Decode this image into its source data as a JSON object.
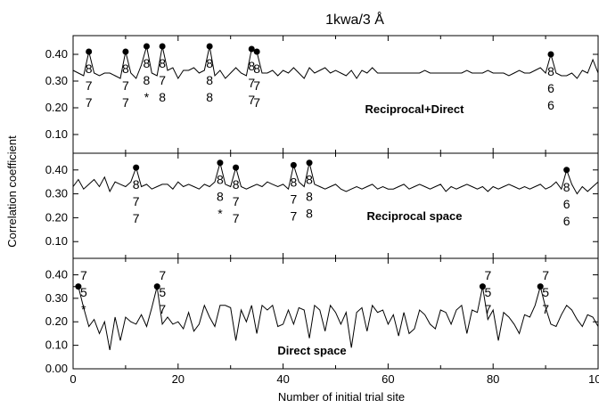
{
  "chart_data": {
    "title": "1kwa/3 Å",
    "xlabel": "Number of initial trial site",
    "ylabel": "Correlation coefficient",
    "xlim": [
      0,
      100
    ],
    "xticks": [
      "0",
      "20",
      "40",
      "60",
      "80",
      "100"
    ],
    "panels": [
      {
        "type": "line",
        "name": "Reciprocal+Direct",
        "ylim": [
          0.03,
          0.47
        ],
        "yticks": [
          "0.40",
          "0.30",
          "0.20",
          "0.10"
        ],
        "ytick_values": [
          0.4,
          0.3,
          0.2,
          0.1
        ],
        "x": [
          0,
          1,
          2,
          3,
          4,
          5,
          6,
          7,
          8,
          9,
          10,
          11,
          12,
          13,
          14,
          15,
          16,
          17,
          18,
          19,
          20,
          21,
          22,
          23,
          24,
          25,
          26,
          27,
          28,
          29,
          30,
          31,
          32,
          33,
          34,
          35,
          36,
          37,
          38,
          39,
          40,
          41,
          42,
          43,
          44,
          45,
          46,
          47,
          48,
          49,
          50,
          51,
          52,
          53,
          54,
          55,
          56,
          57,
          58,
          59,
          60,
          61,
          62,
          63,
          64,
          65,
          66,
          67,
          68,
          69,
          70,
          71,
          72,
          73,
          74,
          75,
          76,
          77,
          78,
          79,
          80,
          81,
          82,
          83,
          84,
          85,
          86,
          87,
          88,
          89,
          90,
          91,
          92,
          93,
          94,
          95,
          96,
          97,
          98,
          99,
          100
        ],
        "y": [
          0.34,
          0.33,
          0.32,
          0.41,
          0.33,
          0.32,
          0.33,
          0.33,
          0.32,
          0.31,
          0.41,
          0.33,
          0.31,
          0.36,
          0.43,
          0.33,
          0.32,
          0.43,
          0.34,
          0.35,
          0.31,
          0.34,
          0.34,
          0.35,
          0.33,
          0.34,
          0.43,
          0.32,
          0.34,
          0.31,
          0.33,
          0.35,
          0.33,
          0.32,
          0.42,
          0.41,
          0.33,
          0.33,
          0.34,
          0.32,
          0.34,
          0.33,
          0.35,
          0.33,
          0.31,
          0.35,
          0.33,
          0.34,
          0.35,
          0.33,
          0.34,
          0.33,
          0.32,
          0.34,
          0.31,
          0.34,
          0.33,
          0.35,
          0.33,
          0.33,
          0.33,
          0.33,
          0.33,
          0.33,
          0.33,
          0.33,
          0.33,
          0.34,
          0.33,
          0.33,
          0.33,
          0.33,
          0.33,
          0.33,
          0.33,
          0.34,
          0.33,
          0.33,
          0.33,
          0.34,
          0.33,
          0.33,
          0.33,
          0.32,
          0.33,
          0.34,
          0.33,
          0.33,
          0.34,
          0.35,
          0.33,
          0.4,
          0.33,
          0.32,
          0.32,
          0.33,
          0.31,
          0.34,
          0.33,
          0.38,
          0.33
        ],
        "markers": [
          {
            "x": 3,
            "y": 0.41,
            "labels": [
              "8",
              "7",
              "7"
            ]
          },
          {
            "x": 10,
            "y": 0.41,
            "labels": [
              "8",
              "7",
              "7"
            ]
          },
          {
            "x": 14,
            "y": 0.43,
            "labels": [
              "8",
              "8",
              "*"
            ]
          },
          {
            "x": 17,
            "y": 0.43,
            "labels": [
              "8",
              "7",
              "8"
            ]
          },
          {
            "x": 26,
            "y": 0.43,
            "labels": [
              "8",
              "8",
              "8"
            ]
          },
          {
            "x": 34,
            "y": 0.42,
            "labels": [
              "8",
              "7",
              "7"
            ]
          },
          {
            "x": 35,
            "y": 0.41,
            "labels": [
              "8",
              "7",
              "7"
            ]
          },
          {
            "x": 91,
            "y": 0.4,
            "labels": [
              "8",
              "6",
              "6"
            ]
          }
        ]
      },
      {
        "type": "line",
        "name": "Reciprocal space",
        "ylim": [
          0.03,
          0.47
        ],
        "yticks": [
          "0.40",
          "0.30",
          "0.20",
          "0.10"
        ],
        "ytick_values": [
          0.4,
          0.3,
          0.2,
          0.1
        ],
        "x": [
          0,
          1,
          2,
          3,
          4,
          5,
          6,
          7,
          8,
          9,
          10,
          11,
          12,
          13,
          14,
          15,
          16,
          17,
          18,
          19,
          20,
          21,
          22,
          23,
          24,
          25,
          26,
          27,
          28,
          29,
          30,
          31,
          32,
          33,
          34,
          35,
          36,
          37,
          38,
          39,
          40,
          41,
          42,
          43,
          44,
          45,
          46,
          47,
          48,
          49,
          50,
          51,
          52,
          53,
          54,
          55,
          56,
          57,
          58,
          59,
          60,
          61,
          62,
          63,
          64,
          65,
          66,
          67,
          68,
          69,
          70,
          71,
          72,
          73,
          74,
          75,
          76,
          77,
          78,
          79,
          80,
          81,
          82,
          83,
          84,
          85,
          86,
          87,
          88,
          89,
          90,
          91,
          92,
          93,
          94,
          95,
          96,
          97,
          98,
          99,
          100
        ],
        "y": [
          0.33,
          0.36,
          0.32,
          0.34,
          0.36,
          0.33,
          0.37,
          0.31,
          0.35,
          0.34,
          0.33,
          0.35,
          0.41,
          0.33,
          0.34,
          0.32,
          0.33,
          0.34,
          0.34,
          0.32,
          0.35,
          0.33,
          0.34,
          0.33,
          0.32,
          0.34,
          0.33,
          0.35,
          0.43,
          0.34,
          0.33,
          0.41,
          0.33,
          0.32,
          0.33,
          0.34,
          0.33,
          0.35,
          0.34,
          0.33,
          0.34,
          0.32,
          0.42,
          0.35,
          0.33,
          0.43,
          0.34,
          0.33,
          0.32,
          0.33,
          0.34,
          0.32,
          0.31,
          0.32,
          0.33,
          0.32,
          0.33,
          0.34,
          0.32,
          0.33,
          0.32,
          0.32,
          0.33,
          0.34,
          0.32,
          0.33,
          0.34,
          0.33,
          0.32,
          0.33,
          0.34,
          0.31,
          0.33,
          0.32,
          0.33,
          0.34,
          0.33,
          0.32,
          0.33,
          0.31,
          0.33,
          0.32,
          0.33,
          0.34,
          0.33,
          0.32,
          0.33,
          0.32,
          0.33,
          0.34,
          0.32,
          0.33,
          0.35,
          0.32,
          0.4,
          0.34,
          0.3,
          0.33,
          0.31,
          0.33,
          0.35
        ],
        "markers": [
          {
            "x": 12,
            "y": 0.41,
            "labels": [
              "8",
              "7",
              "7"
            ]
          },
          {
            "x": 28,
            "y": 0.43,
            "labels": [
              "8",
              "8",
              "*"
            ]
          },
          {
            "x": 31,
            "y": 0.41,
            "labels": [
              "8",
              "7",
              "7"
            ]
          },
          {
            "x": 42,
            "y": 0.42,
            "labels": [
              "8",
              "7",
              "7"
            ]
          },
          {
            "x": 45,
            "y": 0.43,
            "labels": [
              "8",
              "8",
              "8"
            ]
          },
          {
            "x": 94,
            "y": 0.4,
            "labels": [
              "8",
              "6",
              "6"
            ]
          }
        ]
      },
      {
        "type": "line",
        "name": "Direct space",
        "ylim": [
          0.0,
          0.47
        ],
        "yticks": [
          "0.40",
          "0.30",
          "0.20",
          "0.10",
          "0.00"
        ],
        "ytick_values": [
          0.4,
          0.3,
          0.2,
          0.1,
          0.0
        ],
        "x": [
          0,
          1,
          2,
          3,
          4,
          5,
          6,
          7,
          8,
          9,
          10,
          11,
          12,
          13,
          14,
          15,
          16,
          17,
          18,
          19,
          20,
          21,
          22,
          23,
          24,
          25,
          26,
          27,
          28,
          29,
          30,
          31,
          32,
          33,
          34,
          35,
          36,
          37,
          38,
          39,
          40,
          41,
          42,
          43,
          44,
          45,
          46,
          47,
          48,
          49,
          50,
          51,
          52,
          53,
          54,
          55,
          56,
          57,
          58,
          59,
          60,
          61,
          62,
          63,
          64,
          65,
          66,
          67,
          68,
          69,
          70,
          71,
          72,
          73,
          74,
          75,
          76,
          77,
          78,
          79,
          80,
          81,
          82,
          83,
          84,
          85,
          86,
          87,
          88,
          89,
          90,
          91,
          92,
          93,
          94,
          95,
          96,
          97,
          98,
          99,
          100
        ],
        "y": [
          0.35,
          0.35,
          0.26,
          0.18,
          0.21,
          0.15,
          0.2,
          0.08,
          0.22,
          0.12,
          0.22,
          0.2,
          0.19,
          0.23,
          0.18,
          0.26,
          0.35,
          0.19,
          0.22,
          0.19,
          0.2,
          0.17,
          0.24,
          0.16,
          0.19,
          0.27,
          0.22,
          0.18,
          0.27,
          0.27,
          0.26,
          0.12,
          0.25,
          0.2,
          0.27,
          0.15,
          0.27,
          0.25,
          0.27,
          0.18,
          0.19,
          0.25,
          0.19,
          0.26,
          0.25,
          0.13,
          0.27,
          0.25,
          0.16,
          0.27,
          0.24,
          0.19,
          0.24,
          0.09,
          0.24,
          0.26,
          0.16,
          0.27,
          0.24,
          0.25,
          0.19,
          0.23,
          0.14,
          0.24,
          0.15,
          0.17,
          0.25,
          0.23,
          0.19,
          0.17,
          0.25,
          0.24,
          0.19,
          0.25,
          0.27,
          0.15,
          0.25,
          0.24,
          0.35,
          0.21,
          0.25,
          0.12,
          0.24,
          0.22,
          0.19,
          0.15,
          0.23,
          0.22,
          0.27,
          0.35,
          0.26,
          0.19,
          0.18,
          0.23,
          0.27,
          0.25,
          0.21,
          0.18,
          0.23,
          0.22,
          0.18
        ],
        "markers": [
          {
            "x": 1,
            "y": 0.35,
            "labels": [
              "7",
              "5",
              "*"
            ]
          },
          {
            "x": 16,
            "y": 0.35,
            "labels": [
              "7",
              "5",
              "7"
            ]
          },
          {
            "x": 78,
            "y": 0.35,
            "labels": [
              "7",
              "5",
              "7"
            ]
          },
          {
            "x": 89,
            "y": 0.35,
            "labels": [
              "7",
              "5",
              "7"
            ]
          }
        ]
      }
    ]
  }
}
